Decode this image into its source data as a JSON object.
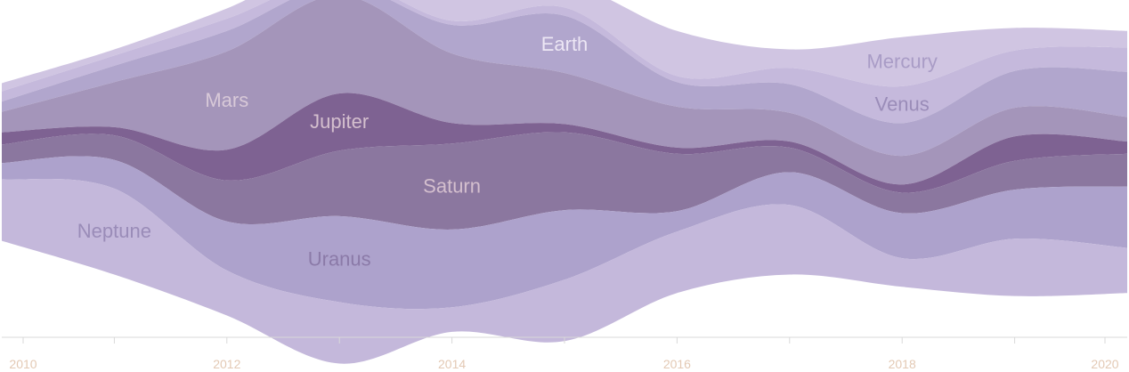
{
  "chart_data": {
    "type": "area",
    "subtype": "streamgraph",
    "title": "",
    "xlabel": "",
    "ylabel": "",
    "x": [
      2010,
      2011,
      2012,
      2013,
      2014,
      2015,
      2016,
      2017,
      2018,
      2019,
      2020
    ],
    "x_ticks": [
      "2010",
      "2012",
      "2014",
      "2016",
      "2018",
      "2020"
    ],
    "grid": false,
    "legend": "inline labels",
    "series": [
      {
        "name": "Mercury",
        "color": "#d0c5e2",
        "label_color": "#a99cc6",
        "values": [
          4,
          3,
          5,
          9,
          14,
          12,
          22,
          9,
          24,
          11,
          8
        ]
      },
      {
        "name": "Venus",
        "color": "#c5b9dc",
        "label_color": "#9a8cb8",
        "values": [
          5,
          5,
          6,
          3,
          2,
          4,
          3,
          8,
          18,
          10,
          12
        ]
      },
      {
        "name": "Earth",
        "color": "#b1a6cd",
        "label_color": "#ece6f4",
        "values": [
          5,
          8,
          10,
          5,
          14,
          28,
          12,
          14,
          16,
          18,
          22
        ]
      },
      {
        "name": "Mars",
        "color": "#a495ba",
        "label_color": "#d8c9d8",
        "values": [
          10,
          22,
          48,
          48,
          34,
          25,
          20,
          14,
          14,
          14,
          12
        ]
      },
      {
        "name": "Jupiter",
        "color": "#7e6292",
        "label_color": "#d4bfce",
        "values": [
          6,
          4,
          15,
          28,
          10,
          4,
          3,
          3,
          4,
          12,
          6
        ]
      },
      {
        "name": "Saturn",
        "color": "#8b779f",
        "label_color": "#d4bfce",
        "values": [
          9,
          12,
          20,
          32,
          42,
          38,
          28,
          12,
          10,
          14,
          16
        ]
      },
      {
        "name": "Uranus",
        "color": "#ada2cc",
        "label_color": "#8b7aa8",
        "values": [
          8,
          14,
          24,
          42,
          38,
          34,
          10,
          16,
          22,
          24,
          30
        ]
      },
      {
        "name": "Neptune",
        "color": "#c4b8db",
        "label_color": "#9a8cb8",
        "values": [
          30,
          42,
          22,
          30,
          12,
          30,
          30,
          34,
          14,
          28,
          22
        ]
      }
    ]
  }
}
